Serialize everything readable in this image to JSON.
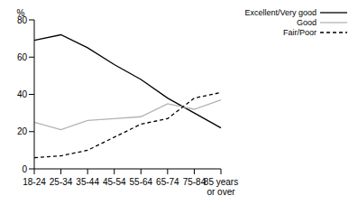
{
  "chart_data": {
    "type": "line",
    "y_label": "%",
    "categories": [
      "18-24",
      "25-34",
      "35-44",
      "45-54",
      "55-64",
      "65-74",
      "75-84",
      "85 years or over"
    ],
    "series": [
      {
        "name": "Excellent/Very good",
        "color": "#000000",
        "line_style": "solid",
        "values": [
          69,
          72,
          65,
          56,
          48,
          38,
          30,
          22
        ]
      },
      {
        "name": "Good",
        "color": "#b3b3b3",
        "line_style": "solid",
        "values": [
          25,
          21,
          26,
          27,
          28,
          35,
          32,
          37
        ]
      },
      {
        "name": "Fair/Poor",
        "color": "#000000",
        "line_style": "dashed",
        "values": [
          6,
          7,
          10,
          17,
          24,
          27,
          38,
          41
        ]
      }
    ],
    "ylim": [
      0,
      80
    ],
    "yticks": [
      0,
      20,
      40,
      60,
      80
    ],
    "grid": false,
    "legend": "upper right"
  }
}
